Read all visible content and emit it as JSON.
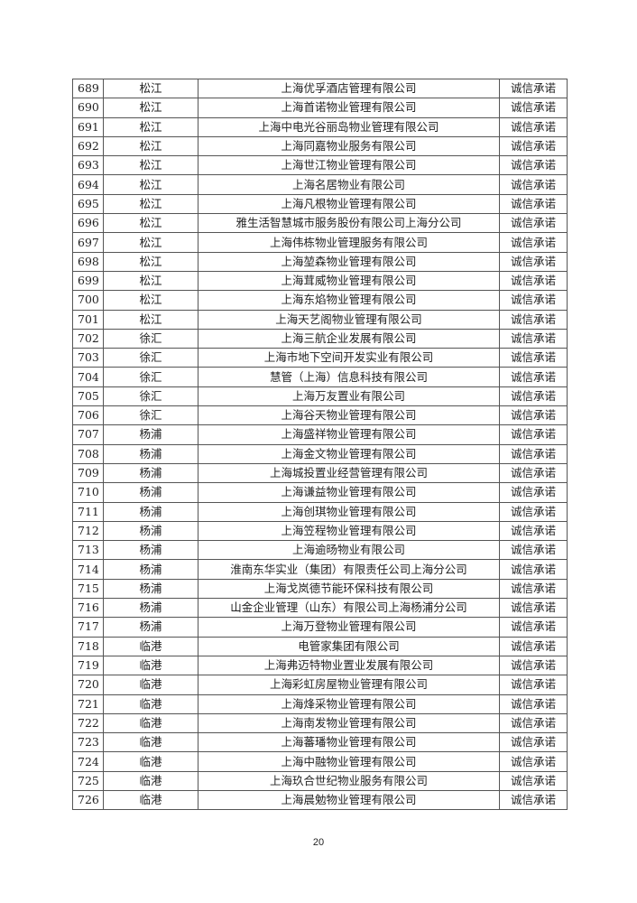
{
  "table": {
    "rows": [
      {
        "no": "689",
        "district": "松江",
        "company": "上海优孚酒店管理有限公司",
        "status": "诚信承诺"
      },
      {
        "no": "690",
        "district": "松江",
        "company": "上海首诺物业管理有限公司",
        "status": "诚信承诺"
      },
      {
        "no": "691",
        "district": "松江",
        "company": "上海中电光谷丽岛物业管理有限公司",
        "status": "诚信承诺"
      },
      {
        "no": "692",
        "district": "松江",
        "company": "上海同嘉物业服务有限公司",
        "status": "诚信承诺"
      },
      {
        "no": "693",
        "district": "松江",
        "company": "上海世江物业管理有限公司",
        "status": "诚信承诺"
      },
      {
        "no": "694",
        "district": "松江",
        "company": "上海名居物业有限公司",
        "status": "诚信承诺"
      },
      {
        "no": "695",
        "district": "松江",
        "company": "上海凡根物业管理有限公司",
        "status": "诚信承诺"
      },
      {
        "no": "696",
        "district": "松江",
        "company": "雅生活智慧城市服务股份有限公司上海分公司",
        "status": "诚信承诺"
      },
      {
        "no": "697",
        "district": "松江",
        "company": "上海伟栋物业管理服务有限公司",
        "status": "诚信承诺"
      },
      {
        "no": "698",
        "district": "松江",
        "company": "上海堃森物业管理有限公司",
        "status": "诚信承诺"
      },
      {
        "no": "699",
        "district": "松江",
        "company": "上海茸威物业管理有限公司",
        "status": "诚信承诺"
      },
      {
        "no": "700",
        "district": "松江",
        "company": "上海东焰物业管理有限公司",
        "status": "诚信承诺"
      },
      {
        "no": "701",
        "district": "松江",
        "company": "上海天艺阁物业管理有限公司",
        "status": "诚信承诺"
      },
      {
        "no": "702",
        "district": "徐汇",
        "company": "上海三航企业发展有限公司",
        "status": "诚信承诺"
      },
      {
        "no": "703",
        "district": "徐汇",
        "company": "上海市地下空间开发实业有限公司",
        "status": "诚信承诺"
      },
      {
        "no": "704",
        "district": "徐汇",
        "company": "慧管（上海）信息科技有限公司",
        "status": "诚信承诺"
      },
      {
        "no": "705",
        "district": "徐汇",
        "company": "上海万友置业有限公司",
        "status": "诚信承诺"
      },
      {
        "no": "706",
        "district": "徐汇",
        "company": "上海谷天物业管理有限公司",
        "status": "诚信承诺"
      },
      {
        "no": "707",
        "district": "杨浦",
        "company": "上海盛祥物业管理有限公司",
        "status": "诚信承诺"
      },
      {
        "no": "708",
        "district": "杨浦",
        "company": "上海金文物业管理有限公司",
        "status": "诚信承诺"
      },
      {
        "no": "709",
        "district": "杨浦",
        "company": "上海城投置业经营管理有限公司",
        "status": "诚信承诺"
      },
      {
        "no": "710",
        "district": "杨浦",
        "company": "上海谦益物业管理有限公司",
        "status": "诚信承诺"
      },
      {
        "no": "711",
        "district": "杨浦",
        "company": "上海创琪物业管理有限公司",
        "status": "诚信承诺"
      },
      {
        "no": "712",
        "district": "杨浦",
        "company": "上海笠程物业管理有限公司",
        "status": "诚信承诺"
      },
      {
        "no": "713",
        "district": "杨浦",
        "company": "上海逾旸物业有限公司",
        "status": "诚信承诺"
      },
      {
        "no": "714",
        "district": "杨浦",
        "company": "淮南东华实业（集团）有限责任公司上海分公司",
        "status": "诚信承诺"
      },
      {
        "no": "715",
        "district": "杨浦",
        "company": "上海戈岚德节能环保科技有限公司",
        "status": "诚信承诺"
      },
      {
        "no": "716",
        "district": "杨浦",
        "company": "山金企业管理（山东）有限公司上海杨浦分公司",
        "status": "诚信承诺"
      },
      {
        "no": "717",
        "district": "杨浦",
        "company": "上海万登物业管理有限公司",
        "status": "诚信承诺"
      },
      {
        "no": "718",
        "district": "临港",
        "company": "电管家集团有限公司",
        "status": "诚信承诺"
      },
      {
        "no": "719",
        "district": "临港",
        "company": "上海弗迈特物业置业发展有限公司",
        "status": "诚信承诺"
      },
      {
        "no": "720",
        "district": "临港",
        "company": "上海彩虹房屋物业管理有限公司",
        "status": "诚信承诺"
      },
      {
        "no": "721",
        "district": "临港",
        "company": "上海烽采物业管理有限公司",
        "status": "诚信承诺"
      },
      {
        "no": "722",
        "district": "临港",
        "company": "上海南发物业管理有限公司",
        "status": "诚信承诺"
      },
      {
        "no": "723",
        "district": "临港",
        "company": "上海蕃璠物业管理有限公司",
        "status": "诚信承诺"
      },
      {
        "no": "724",
        "district": "临港",
        "company": "上海中融物业管理有限公司",
        "status": "诚信承诺"
      },
      {
        "no": "725",
        "district": "临港",
        "company": "上海玖合世纪物业服务有限公司",
        "status": "诚信承诺"
      },
      {
        "no": "726",
        "district": "临港",
        "company": "上海晨勉物业管理有限公司",
        "status": "诚信承诺"
      }
    ]
  },
  "page_number": "20"
}
